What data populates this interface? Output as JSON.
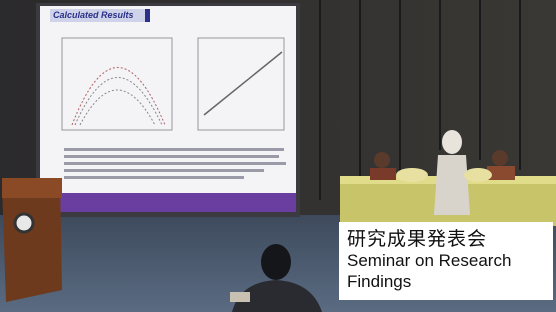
{
  "slide": {
    "title": "Calculated Results"
  },
  "caption": {
    "title": "研究成果発表会",
    "subtitle": "Seminar on Research Findings"
  }
}
